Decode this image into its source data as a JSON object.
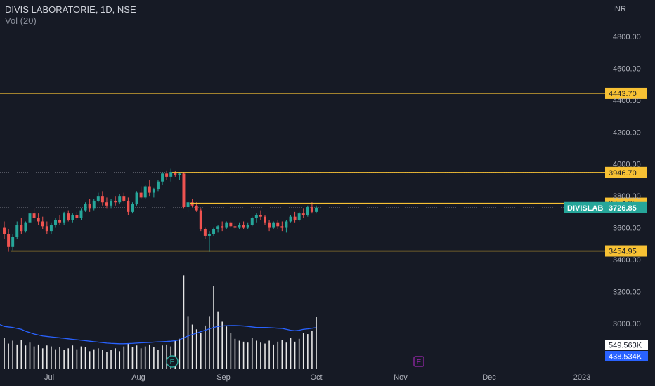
{
  "header": {
    "title": "DIVIS LABORATORIE, 1D, NSE",
    "indicator": "Vol (20)"
  },
  "colors": {
    "background": "#161a25",
    "up": "#26a69a",
    "down": "#ef5350",
    "level": "#f7c134",
    "volume_bar": "#e6e6e6",
    "volume_ma": "#2962ff",
    "grid_dotted": "#5d606b"
  },
  "chart_data": {
    "type": "candlestick",
    "currency": "INR",
    "y_ticks": [
      "4800.00",
      "4600.00",
      "4400.00",
      "4200.00",
      "4000.00",
      "3800.00",
      "3600.00",
      "3400.00",
      "3200.00",
      "3000.00"
    ],
    "x_ticks": [
      "Jul",
      "Aug",
      "Sep",
      "Oct",
      "Nov",
      "Dec",
      "2023"
    ],
    "ylim": [
      2900,
      4900
    ],
    "levels": [
      {
        "label": "4443.70",
        "value": 4443.7
      },
      {
        "label": "3946.70",
        "value": 3946.7
      },
      {
        "label": "3754.05",
        "value": 3754.05
      },
      {
        "label": "3454.95",
        "value": 3454.95
      }
    ],
    "last_price": {
      "symbol": "DIVISLAB",
      "label": "3726.85",
      "value": 3726.85
    },
    "volume": {
      "current_label": "549.563K",
      "ma_label": "438.534K"
    },
    "events": [
      "E",
      "E"
    ],
    "candles": [
      [
        3600,
        3640,
        3530,
        3560
      ],
      [
        3560,
        3590,
        3450,
        3480
      ],
      [
        3480,
        3560,
        3460,
        3545
      ],
      [
        3545,
        3640,
        3530,
        3620
      ],
      [
        3620,
        3660,
        3560,
        3580
      ],
      [
        3580,
        3640,
        3570,
        3630
      ],
      [
        3630,
        3700,
        3620,
        3690
      ],
      [
        3690,
        3720,
        3640,
        3660
      ],
      [
        3660,
        3690,
        3620,
        3640
      ],
      [
        3640,
        3670,
        3590,
        3610
      ],
      [
        3610,
        3640,
        3560,
        3580
      ],
      [
        3580,
        3630,
        3560,
        3620
      ],
      [
        3620,
        3660,
        3600,
        3650
      ],
      [
        3650,
        3680,
        3620,
        3630
      ],
      [
        3630,
        3700,
        3620,
        3690
      ],
      [
        3690,
        3710,
        3640,
        3650
      ],
      [
        3650,
        3690,
        3630,
        3680
      ],
      [
        3680,
        3700,
        3650,
        3660
      ],
      [
        3660,
        3720,
        3650,
        3710
      ],
      [
        3710,
        3760,
        3700,
        3750
      ],
      [
        3750,
        3780,
        3700,
        3720
      ],
      [
        3720,
        3780,
        3710,
        3770
      ],
      [
        3770,
        3820,
        3760,
        3800
      ],
      [
        3800,
        3830,
        3740,
        3760
      ],
      [
        3760,
        3790,
        3720,
        3740
      ],
      [
        3740,
        3780,
        3720,
        3770
      ],
      [
        3770,
        3800,
        3740,
        3760
      ],
      [
        3760,
        3810,
        3750,
        3800
      ],
      [
        3800,
        3820,
        3760,
        3770
      ],
      [
        3770,
        3790,
        3680,
        3700
      ],
      [
        3700,
        3760,
        3690,
        3750
      ],
      [
        3750,
        3830,
        3740,
        3820
      ],
      [
        3820,
        3860,
        3780,
        3790
      ],
      [
        3790,
        3870,
        3780,
        3860
      ],
      [
        3860,
        3900,
        3800,
        3820
      ],
      [
        3820,
        3850,
        3790,
        3840
      ],
      [
        3840,
        3900,
        3830,
        3890
      ],
      [
        3890,
        3950,
        3870,
        3940
      ],
      [
        3940,
        3960,
        3900,
        3920
      ],
      [
        3920,
        3970,
        3890,
        3950
      ],
      [
        3945,
        3955,
        3920,
        3930
      ],
      [
        3930,
        3950,
        3900,
        3940
      ],
      [
        3940,
        3950,
        3720,
        3730
      ],
      [
        3730,
        3770,
        3700,
        3760
      ],
      [
        3760,
        3780,
        3730,
        3740
      ],
      [
        3740,
        3760,
        3700,
        3710
      ],
      [
        3710,
        3720,
        3580,
        3590
      ],
      [
        3590,
        3600,
        3530,
        3550
      ],
      [
        3550,
        3580,
        3450,
        3560
      ],
      [
        3560,
        3600,
        3550,
        3590
      ],
      [
        3590,
        3620,
        3570,
        3610
      ],
      [
        3610,
        3640,
        3580,
        3600
      ],
      [
        3600,
        3640,
        3590,
        3630
      ],
      [
        3630,
        3640,
        3600,
        3610
      ],
      [
        3610,
        3630,
        3590,
        3600
      ],
      [
        3600,
        3630,
        3590,
        3620
      ],
      [
        3620,
        3640,
        3590,
        3600
      ],
      [
        3600,
        3630,
        3590,
        3620
      ],
      [
        3620,
        3670,
        3610,
        3660
      ],
      [
        3660,
        3690,
        3630,
        3680
      ],
      [
        3680,
        3710,
        3650,
        3670
      ],
      [
        3670,
        3680,
        3620,
        3630
      ],
      [
        3630,
        3650,
        3580,
        3600
      ],
      [
        3600,
        3640,
        3590,
        3630
      ],
      [
        3630,
        3650,
        3590,
        3610
      ],
      [
        3610,
        3640,
        3580,
        3600
      ],
      [
        3600,
        3650,
        3570,
        3640
      ],
      [
        3640,
        3680,
        3630,
        3670
      ],
      [
        3670,
        3700,
        3630,
        3650
      ],
      [
        3650,
        3700,
        3640,
        3690
      ],
      [
        3690,
        3720,
        3660,
        3680
      ],
      [
        3680,
        3740,
        3670,
        3730
      ],
      [
        3730,
        3760,
        3690,
        3700
      ],
      [
        3700,
        3740,
        3690,
        3727
      ]
    ],
    "volumes": [
      330,
      270,
      300,
      260,
      310,
      250,
      280,
      240,
      260,
      220,
      250,
      240,
      210,
      230,
      200,
      220,
      250,
      210,
      240,
      230,
      190,
      210,
      220,
      200,
      180,
      200,
      220,
      190,
      240,
      270,
      230,
      250,
      220,
      240,
      260,
      230,
      200,
      250,
      260,
      240,
      300,
      320,
      990,
      560,
      470,
      420,
      380,
      460,
      560,
      880,
      610,
      500,
      450,
      380,
      320,
      300,
      290,
      280,
      330,
      300,
      280,
      270,
      300,
      260,
      290,
      310,
      280,
      330,
      290,
      320,
      380,
      370,
      400,
      550
    ],
    "volume_ma": [
      450,
      445,
      440,
      430,
      420,
      400,
      385,
      370,
      360,
      350,
      345,
      340,
      335,
      330,
      325,
      320,
      315,
      310,
      305,
      300,
      295,
      290,
      285,
      280,
      275,
      272,
      270,
      268,
      268,
      270,
      272,
      275,
      278,
      280,
      282,
      285,
      288,
      290,
      292,
      295,
      300,
      310,
      330,
      350,
      365,
      380,
      395,
      410,
      425,
      440,
      450,
      455,
      458,
      460,
      460,
      458,
      455,
      450,
      445,
      440,
      440,
      440,
      438,
      435,
      432,
      430,
      420,
      410,
      405,
      410,
      420,
      425,
      432,
      438
    ]
  }
}
